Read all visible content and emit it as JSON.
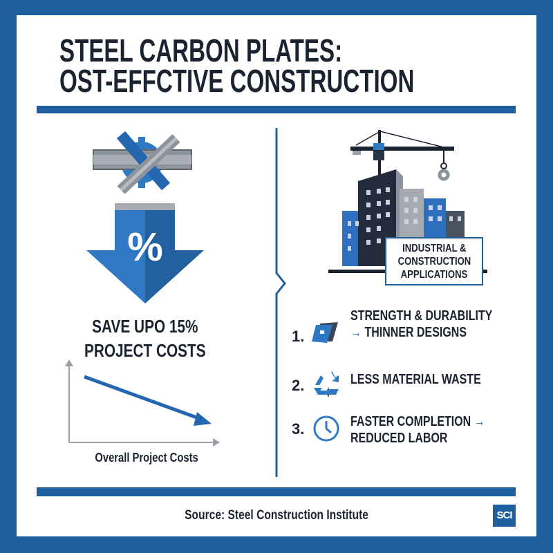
{
  "header": {
    "title_line1": "STEEL CARBON PLATES:",
    "title_line2": "OST-EFFCTIVE CONSTRUCTION"
  },
  "left": {
    "percent_symbol": "%",
    "savings_line1": "SAVE UPO 15%",
    "savings_line2": "PROJECT COSTS",
    "chart_label": "Overall Project Costs"
  },
  "right": {
    "building_label_line1": "INDUSTRIAL &",
    "building_label_line2": "CONSTRUCTION",
    "building_label_line3": "APPLICATIONS",
    "items": [
      {
        "num": "1.",
        "line1": "STRENGTH & DURABILITY",
        "arrow": "→",
        "line2": "THINNER DESIGNS",
        "icon": "steel-plates-icon"
      },
      {
        "num": "2.",
        "line1": "LESS MATERIAL WASTE",
        "icon": "recycle-icon"
      },
      {
        "num": "3.",
        "line1": "FASTER COMPLETION",
        "arrow": "→",
        "line2": "REDUCED LABOR",
        "icon": "clock-icon"
      }
    ]
  },
  "footer": {
    "source": "Source: Steel Construction Institute",
    "logo": "SCI"
  },
  "colors": {
    "brand_blue": "#1f5f9e",
    "accent_blue": "#2f78c4",
    "dark": "#1c2330",
    "gray": "#9aa0a8"
  }
}
